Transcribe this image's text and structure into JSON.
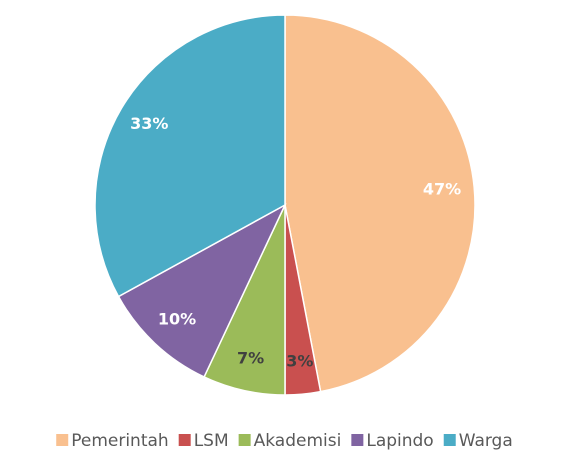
{
  "chart_data": {
    "type": "pie",
    "categories": [
      "Pemerintah",
      "LSM",
      "Akademisi",
      "Lapindo",
      "Warga"
    ],
    "values": [
      47,
      3,
      7,
      10,
      33
    ],
    "value_labels": [
      "47%",
      "3%",
      "7%",
      "10%",
      "33%"
    ],
    "colors": [
      "#F9C08F",
      "#C9504F",
      "#9BBB59",
      "#8064A2",
      "#4BACC6"
    ],
    "label_colors": [
      "#ffffff",
      "#404040",
      "#404040",
      "#ffffff",
      "#ffffff"
    ],
    "legend": "bottom"
  }
}
